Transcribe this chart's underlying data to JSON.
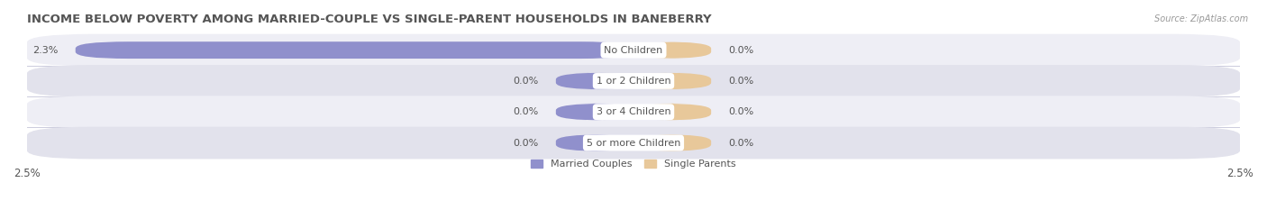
{
  "title": "INCOME BELOW POVERTY AMONG MARRIED-COUPLE VS SINGLE-PARENT HOUSEHOLDS IN BANEBERRY",
  "source": "Source: ZipAtlas.com",
  "categories": [
    "No Children",
    "1 or 2 Children",
    "3 or 4 Children",
    "5 or more Children"
  ],
  "married_values": [
    2.3,
    0.0,
    0.0,
    0.0
  ],
  "single_values": [
    0.0,
    0.0,
    0.0,
    0.0
  ],
  "married_color": "#9090cc",
  "single_color": "#e8c89a",
  "row_bg_even": "#eeeef5",
  "row_bg_odd": "#e2e2ec",
  "xlim_max": 2.5,
  "min_bar_width": 0.32,
  "bar_height": 0.55,
  "legend_labels": [
    "Married Couples",
    "Single Parents"
  ],
  "title_fontsize": 9.5,
  "label_fontsize": 8.0,
  "tick_fontsize": 8.5,
  "value_fontsize": 8.0,
  "background_color": "#ffffff",
  "text_color": "#555555"
}
